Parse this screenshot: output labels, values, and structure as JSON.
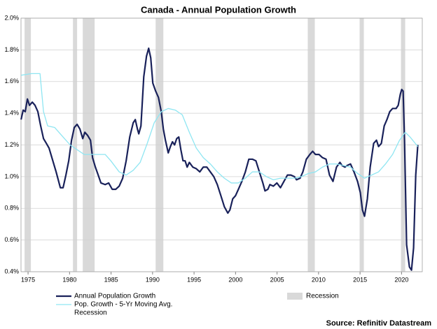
{
  "chart_data": {
    "type": "line",
    "title": "Canada - Annual Population Growth",
    "source": "Source: Refinitiv Datastream",
    "xlim": [
      1974.15,
      2022.5
    ],
    "ylim": [
      0.4,
      2.0
    ],
    "xticks": [
      1975,
      1980,
      1985,
      1990,
      1995,
      2000,
      2005,
      2010,
      2015,
      2020
    ],
    "yticks": [
      {
        "value": 0.4,
        "label": "0.4%"
      },
      {
        "value": 0.6,
        "label": "0.6%"
      },
      {
        "value": 0.8,
        "label": "0.8%"
      },
      {
        "value": 1.0,
        "label": "1.0%"
      },
      {
        "value": 1.2,
        "label": "1.2%"
      },
      {
        "value": 1.4,
        "label": "1.4%"
      },
      {
        "value": 1.6,
        "label": "1.6%"
      },
      {
        "value": 1.8,
        "label": "1.8%"
      },
      {
        "value": 2.0,
        "label": "2.0%"
      }
    ],
    "grid": true,
    "recession": {
      "name": "Recession",
      "color": "#d9d9d9",
      "periods": [
        [
          1974.58,
          1975.34
        ],
        [
          1980.41,
          1980.91
        ],
        [
          1981.59,
          1983.02
        ],
        [
          1990.37,
          1991.3
        ],
        [
          2008.7,
          2009.55
        ],
        [
          2014.95,
          2015.46
        ],
        [
          2019.93,
          2020.44
        ]
      ]
    },
    "series": [
      {
        "name": "Annual Population Growth",
        "color": "#19215a",
        "width": 2.2,
        "x": [
          1974.16,
          1974.41,
          1974.66,
          1974.92,
          1975.17,
          1975.51,
          1975.84,
          1976.18,
          1976.52,
          1976.86,
          1977.2,
          1977.53,
          1977.87,
          1978.38,
          1978.89,
          1979.22,
          1979.56,
          1979.9,
          1980.24,
          1980.57,
          1980.91,
          1981.25,
          1981.59,
          1981.84,
          1982.18,
          1982.52,
          1982.77,
          1983.11,
          1983.45,
          1983.78,
          1984.29,
          1984.71,
          1985.14,
          1985.56,
          1985.98,
          1986.4,
          1986.82,
          1987.25,
          1987.67,
          1987.92,
          1988.18,
          1988.34,
          1988.6,
          1988.94,
          1989.27,
          1989.53,
          1989.78,
          1990.03,
          1990.37,
          1990.71,
          1991.05,
          1991.3,
          1991.55,
          1991.89,
          1992.15,
          1992.4,
          1992.65,
          1992.91,
          1993.16,
          1993.41,
          1993.67,
          1993.92,
          1994.17,
          1994.43,
          1994.85,
          1995.27,
          1995.69,
          1996.11,
          1996.54,
          1996.96,
          1997.38,
          1997.8,
          1998.23,
          1998.65,
          1999.07,
          1999.32,
          1999.66,
          2000.0,
          2000.34,
          2000.76,
          2001.18,
          2001.6,
          2002.03,
          2002.45,
          2002.87,
          2003.29,
          2003.55,
          2003.89,
          2004.14,
          2004.56,
          2004.98,
          2005.41,
          2005.83,
          2006.25,
          2006.67,
          2007.09,
          2007.35,
          2007.77,
          2008.11,
          2008.53,
          2008.95,
          2009.29,
          2009.63,
          2010.05,
          2010.47,
          2010.9,
          2011.32,
          2011.74,
          2012.16,
          2012.58,
          2012.84,
          2013.18,
          2013.43,
          2013.85,
          2014.27,
          2014.7,
          2015.03,
          2015.29,
          2015.54,
          2015.88,
          2016.22,
          2016.64,
          2016.98,
          2017.23,
          2017.57,
          2017.91,
          2018.24,
          2018.58,
          2018.92,
          2019.34,
          2019.6,
          2019.85,
          2020.02,
          2020.19,
          2020.36,
          2020.61,
          2020.95,
          2021.2,
          2021.45,
          2021.71,
          2021.96
        ],
        "values": [
          1.36,
          1.42,
          1.41,
          1.49,
          1.45,
          1.47,
          1.45,
          1.41,
          1.32,
          1.24,
          1.21,
          1.18,
          1.12,
          1.03,
          0.93,
          0.93,
          1.01,
          1.1,
          1.23,
          1.31,
          1.33,
          1.3,
          1.24,
          1.28,
          1.26,
          1.23,
          1.12,
          1.06,
          1.01,
          0.96,
          0.95,
          0.96,
          0.92,
          0.92,
          0.94,
          0.99,
          1.1,
          1.25,
          1.34,
          1.36,
          1.3,
          1.27,
          1.32,
          1.63,
          1.76,
          1.81,
          1.75,
          1.59,
          1.54,
          1.5,
          1.41,
          1.3,
          1.23,
          1.15,
          1.19,
          1.22,
          1.2,
          1.24,
          1.25,
          1.17,
          1.1,
          1.1,
          1.06,
          1.09,
          1.06,
          1.05,
          1.03,
          1.06,
          1.06,
          1.03,
          1.0,
          0.95,
          0.88,
          0.81,
          0.77,
          0.79,
          0.86,
          0.88,
          0.92,
          0.97,
          1.03,
          1.11,
          1.11,
          1.1,
          1.03,
          0.96,
          0.91,
          0.92,
          0.95,
          0.94,
          0.96,
          0.93,
          0.97,
          1.01,
          1.01,
          1.0,
          0.98,
          0.99,
          1.03,
          1.11,
          1.14,
          1.16,
          1.14,
          1.14,
          1.12,
          1.11,
          1.01,
          0.97,
          1.06,
          1.09,
          1.07,
          1.06,
          1.07,
          1.08,
          1.03,
          0.97,
          0.9,
          0.79,
          0.75,
          0.86,
          1.06,
          1.21,
          1.23,
          1.19,
          1.21,
          1.32,
          1.36,
          1.41,
          1.43,
          1.43,
          1.45,
          1.52,
          1.55,
          1.54,
          1.23,
          0.57,
          0.43,
          0.41,
          0.55,
          1.01,
          1.2
        ]
      },
      {
        "name": "Pop. Growth - 5-Yr Moving Avg.",
        "color": "#8fe6f2",
        "width": 1.3,
        "x": [
          1974.16,
          1975.42,
          1976.44,
          1976.86,
          1977.36,
          1978.21,
          1979.22,
          1980.07,
          1980.91,
          1981.76,
          1983.02,
          1984.29,
          1984.97,
          1985.98,
          1986.82,
          1987.67,
          1988.51,
          1989.36,
          1990.2,
          1991.05,
          1991.89,
          1992.74,
          1993.58,
          1994.43,
          1995.27,
          1996.11,
          1996.96,
          1997.8,
          1998.65,
          1999.49,
          2000.34,
          2001.18,
          2002.03,
          2002.87,
          2003.72,
          2004.56,
          2005.41,
          2006.25,
          2007.09,
          2007.94,
          2008.78,
          2009.63,
          2010.47,
          2011.32,
          2012.16,
          2013.01,
          2013.85,
          2014.7,
          2015.54,
          2016.39,
          2017.23,
          2018.07,
          2018.92,
          2019.76,
          2020.44,
          2021.03,
          2021.96
        ],
        "values": [
          1.64,
          1.65,
          1.65,
          1.41,
          1.32,
          1.31,
          1.25,
          1.2,
          1.17,
          1.14,
          1.14,
          1.14,
          1.1,
          1.03,
          1.01,
          1.04,
          1.09,
          1.21,
          1.34,
          1.41,
          1.43,
          1.42,
          1.39,
          1.28,
          1.18,
          1.12,
          1.08,
          1.03,
          0.99,
          0.96,
          0.96,
          0.99,
          1.03,
          1.03,
          1.0,
          0.98,
          0.99,
          0.99,
          0.99,
          1.0,
          1.02,
          1.03,
          1.06,
          1.08,
          1.08,
          1.07,
          1.06,
          1.02,
          0.99,
          1.01,
          1.03,
          1.08,
          1.14,
          1.23,
          1.28,
          1.25,
          1.19
        ]
      }
    ]
  }
}
